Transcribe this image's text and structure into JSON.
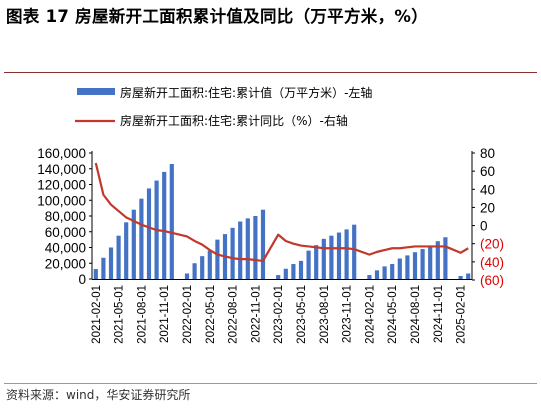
{
  "figure": {
    "label": "图表",
    "number": "17",
    "title": "房屋新开工面积累计值及同比（万平方米，%）",
    "source": "资料来源：wind，华安证券研究所"
  },
  "chart_data": {
    "type": "bar+line",
    "x": [
      "2021-02",
      "2021-03",
      "2021-04",
      "2021-05",
      "2021-06",
      "2021-07",
      "2021-08",
      "2021-09",
      "2021-10",
      "2021-11",
      "2021-12",
      "2022-02",
      "2022-03",
      "2022-04",
      "2022-05",
      "2022-06",
      "2022-07",
      "2022-08",
      "2022-09",
      "2022-10",
      "2022-11",
      "2022-12",
      "2023-02",
      "2023-03",
      "2023-04",
      "2023-05",
      "2023-06",
      "2023-07",
      "2023-08",
      "2023-09",
      "2023-10",
      "2023-11",
      "2023-12",
      "2024-02",
      "2024-03",
      "2024-04",
      "2024-05",
      "2024-06",
      "2024-07",
      "2024-08",
      "2024-09",
      "2024-10",
      "2024-11",
      "2024-12",
      "2025-02",
      "2025-03"
    ],
    "x_tick_labels": [
      "2021-02-01",
      "2021-05-01",
      "2021-08-01",
      "2021-11-01",
      "2022-02-01",
      "2022-05-01",
      "2022-08-01",
      "2022-11-01",
      "2023-02-01",
      "2023-05-01",
      "2023-08-01",
      "2023-11-01",
      "2024-02-01",
      "2024-05-01",
      "2024-08-01",
      "2024-11-01",
      "2025-02-01"
    ],
    "x_tick_months": [
      "2021-02",
      "2021-05",
      "2021-08",
      "2021-11",
      "2022-02",
      "2022-05",
      "2022-08",
      "2022-11",
      "2023-02",
      "2023-05",
      "2023-08",
      "2023-11",
      "2024-02",
      "2024-05",
      "2024-08",
      "2024-11",
      "2025-02"
    ],
    "series": [
      {
        "name": "房屋新开工面积:住宅:累计值（万平方米）-左轴",
        "kind": "bar",
        "axis": "left",
        "color": "#4472c4",
        "values": [
          12600,
          27000,
          40000,
          55000,
          72000,
          88000,
          102000,
          115000,
          125000,
          136000,
          146000,
          7000,
          20000,
          29000,
          36000,
          50000,
          57000,
          65000,
          73000,
          77000,
          80000,
          88000,
          5000,
          13000,
          19000,
          23000,
          36000,
          43000,
          51000,
          55000,
          59000,
          63000,
          69000,
          5000,
          11000,
          16000,
          19000,
          26000,
          30000,
          34000,
          38000,
          42000,
          48000,
          53000,
          3800,
          7000
        ]
      },
      {
        "name": "房屋新开工面积:住宅:累计同比（%）-右轴",
        "kind": "line",
        "axis": "right",
        "color": "#c0392b",
        "values": [
          69,
          34,
          23,
          16,
          9,
          5,
          1,
          -2,
          -5,
          -6,
          -8,
          -12,
          -17,
          -21,
          -27,
          -32,
          -34,
          -36,
          -37,
          -37,
          -38,
          -39,
          -10,
          -17,
          -20,
          -22,
          -23,
          -24,
          -25,
          -25,
          -25,
          -25,
          -26,
          -32,
          -29,
          -27,
          -25,
          -25,
          -24,
          -23,
          -23,
          -23,
          -23,
          -23,
          -30,
          -25
        ]
      }
    ],
    "y_left": {
      "min": 0,
      "max": 160000,
      "step": 20000,
      "tick_labels": [
        "0",
        "20,000",
        "40,000",
        "60,000",
        "80,000",
        "100,000",
        "120,000",
        "140,000",
        "160,000"
      ]
    },
    "y_right": {
      "min": -60,
      "max": 80,
      "step": 20,
      "tick_labels": [
        "(60)",
        "(40)",
        "(20)",
        "0",
        "20",
        "40",
        "60",
        "80"
      ]
    },
    "grid": false,
    "legend_position": "top"
  }
}
